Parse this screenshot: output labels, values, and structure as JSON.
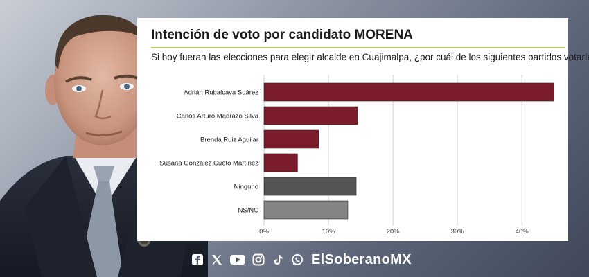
{
  "chart_data": {
    "type": "bar",
    "orientation": "horizontal",
    "title": "Intención de voto por candidato MORENA",
    "subtitle": "Si hoy fueran las elecciones para elegir alcalde en Cuajimalpa, ¿por cuál de los siguientes partidos votaría?",
    "categories": [
      "Adrián Rubalcava Suárez",
      "Carlos Arturo Madrazo Silva",
      "Brenda Ruiz Aguilar",
      "Susana González Cueto Martínez",
      "Ninguno",
      "NS/NC"
    ],
    "values": [
      45,
      14.5,
      8.5,
      5.2,
      14.3,
      13
    ],
    "bar_colors": [
      "#7b1c2a",
      "#7b1c2a",
      "#7b1c2a",
      "#7b1c2a",
      "#555555",
      "#838383"
    ],
    "x_ticks": [
      "0%",
      "10%",
      "20%",
      "30%",
      "40%"
    ],
    "xlim": [
      0,
      46
    ],
    "grid": true,
    "legend": false
  },
  "footer": {
    "brand": "ElSoberanoMX",
    "icons": [
      "facebook-icon",
      "x-icon",
      "youtube-icon",
      "instagram-icon",
      "tiktok-icon",
      "whatsapp-icon"
    ]
  }
}
